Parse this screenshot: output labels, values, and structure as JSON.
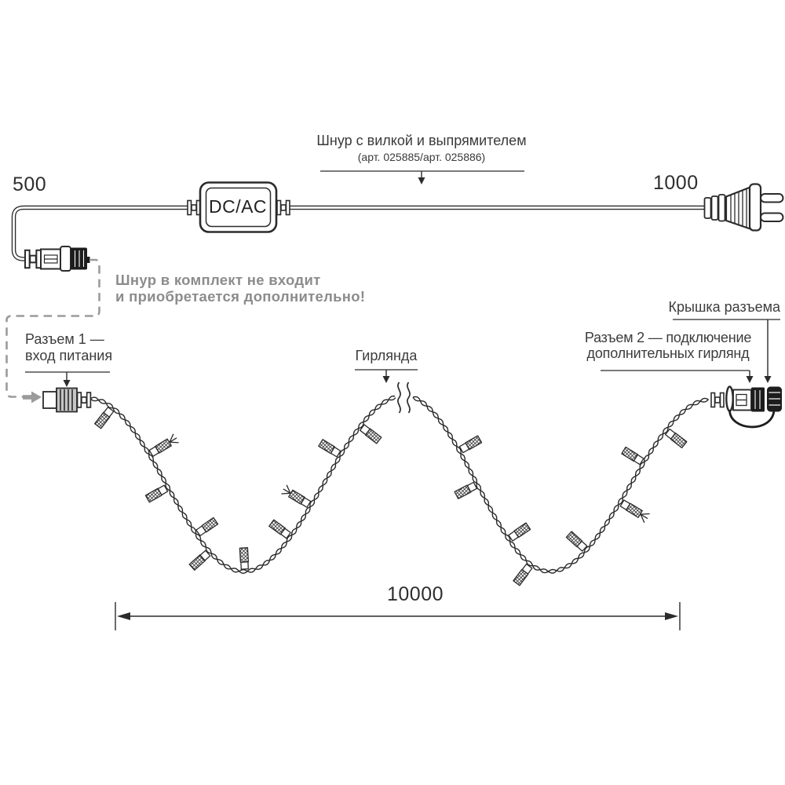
{
  "title_block": {
    "title": "Шнур с вилкой и выпрямителем",
    "subtitle": "(арт. 025885/арт. 025886)"
  },
  "dimensions": {
    "cord_left": "500",
    "cord_right": "1000",
    "garland_length": "10000"
  },
  "adapter_label": "DC/AC",
  "note": {
    "line1": "Шнур в комплект не входит",
    "line2": "и приобретается дополнительно!"
  },
  "labels": {
    "connector1_line1": "Разъем 1 —",
    "connector1_line2": "вход питания",
    "garland": "Гирлянда",
    "connector2_line1": "Разъем 2 — подключение",
    "connector2_line2": "дополнительных гирлянд",
    "cap": "Крышка разъема"
  },
  "colors": {
    "line": "#2b2b2b",
    "note_gray": "#8c8c8c",
    "dashed_gray": "#9b9b9b",
    "label_text": "#3c3c3c"
  }
}
